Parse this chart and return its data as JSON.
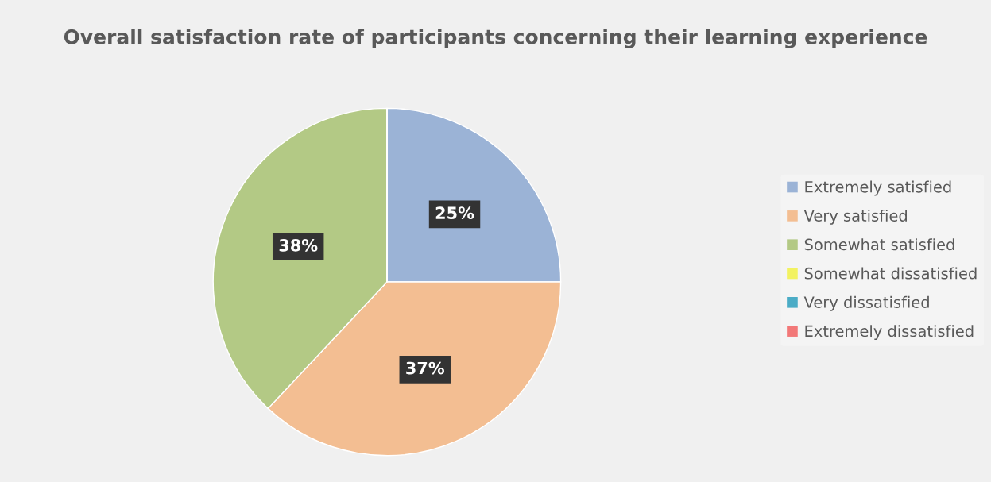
{
  "chart_data": {
    "type": "pie",
    "title": "Overall satisfaction rate of participants concerning their learning experience",
    "categories": [
      "Extremely satisfied",
      "Very satisfied",
      "Somewhat satisfied",
      "Somewhat dissatisfied",
      "Very dissatisfied",
      "Extremely dissatisfied"
    ],
    "values": [
      25,
      37,
      38,
      0,
      0,
      0
    ],
    "colors": [
      "#9bb3d6",
      "#f3be92",
      "#b3c985",
      "#f2f261",
      "#4bacc6",
      "#f27878"
    ],
    "value_labels": [
      "25%",
      "37%",
      "38%",
      null,
      null,
      null
    ],
    "legend": "right"
  }
}
